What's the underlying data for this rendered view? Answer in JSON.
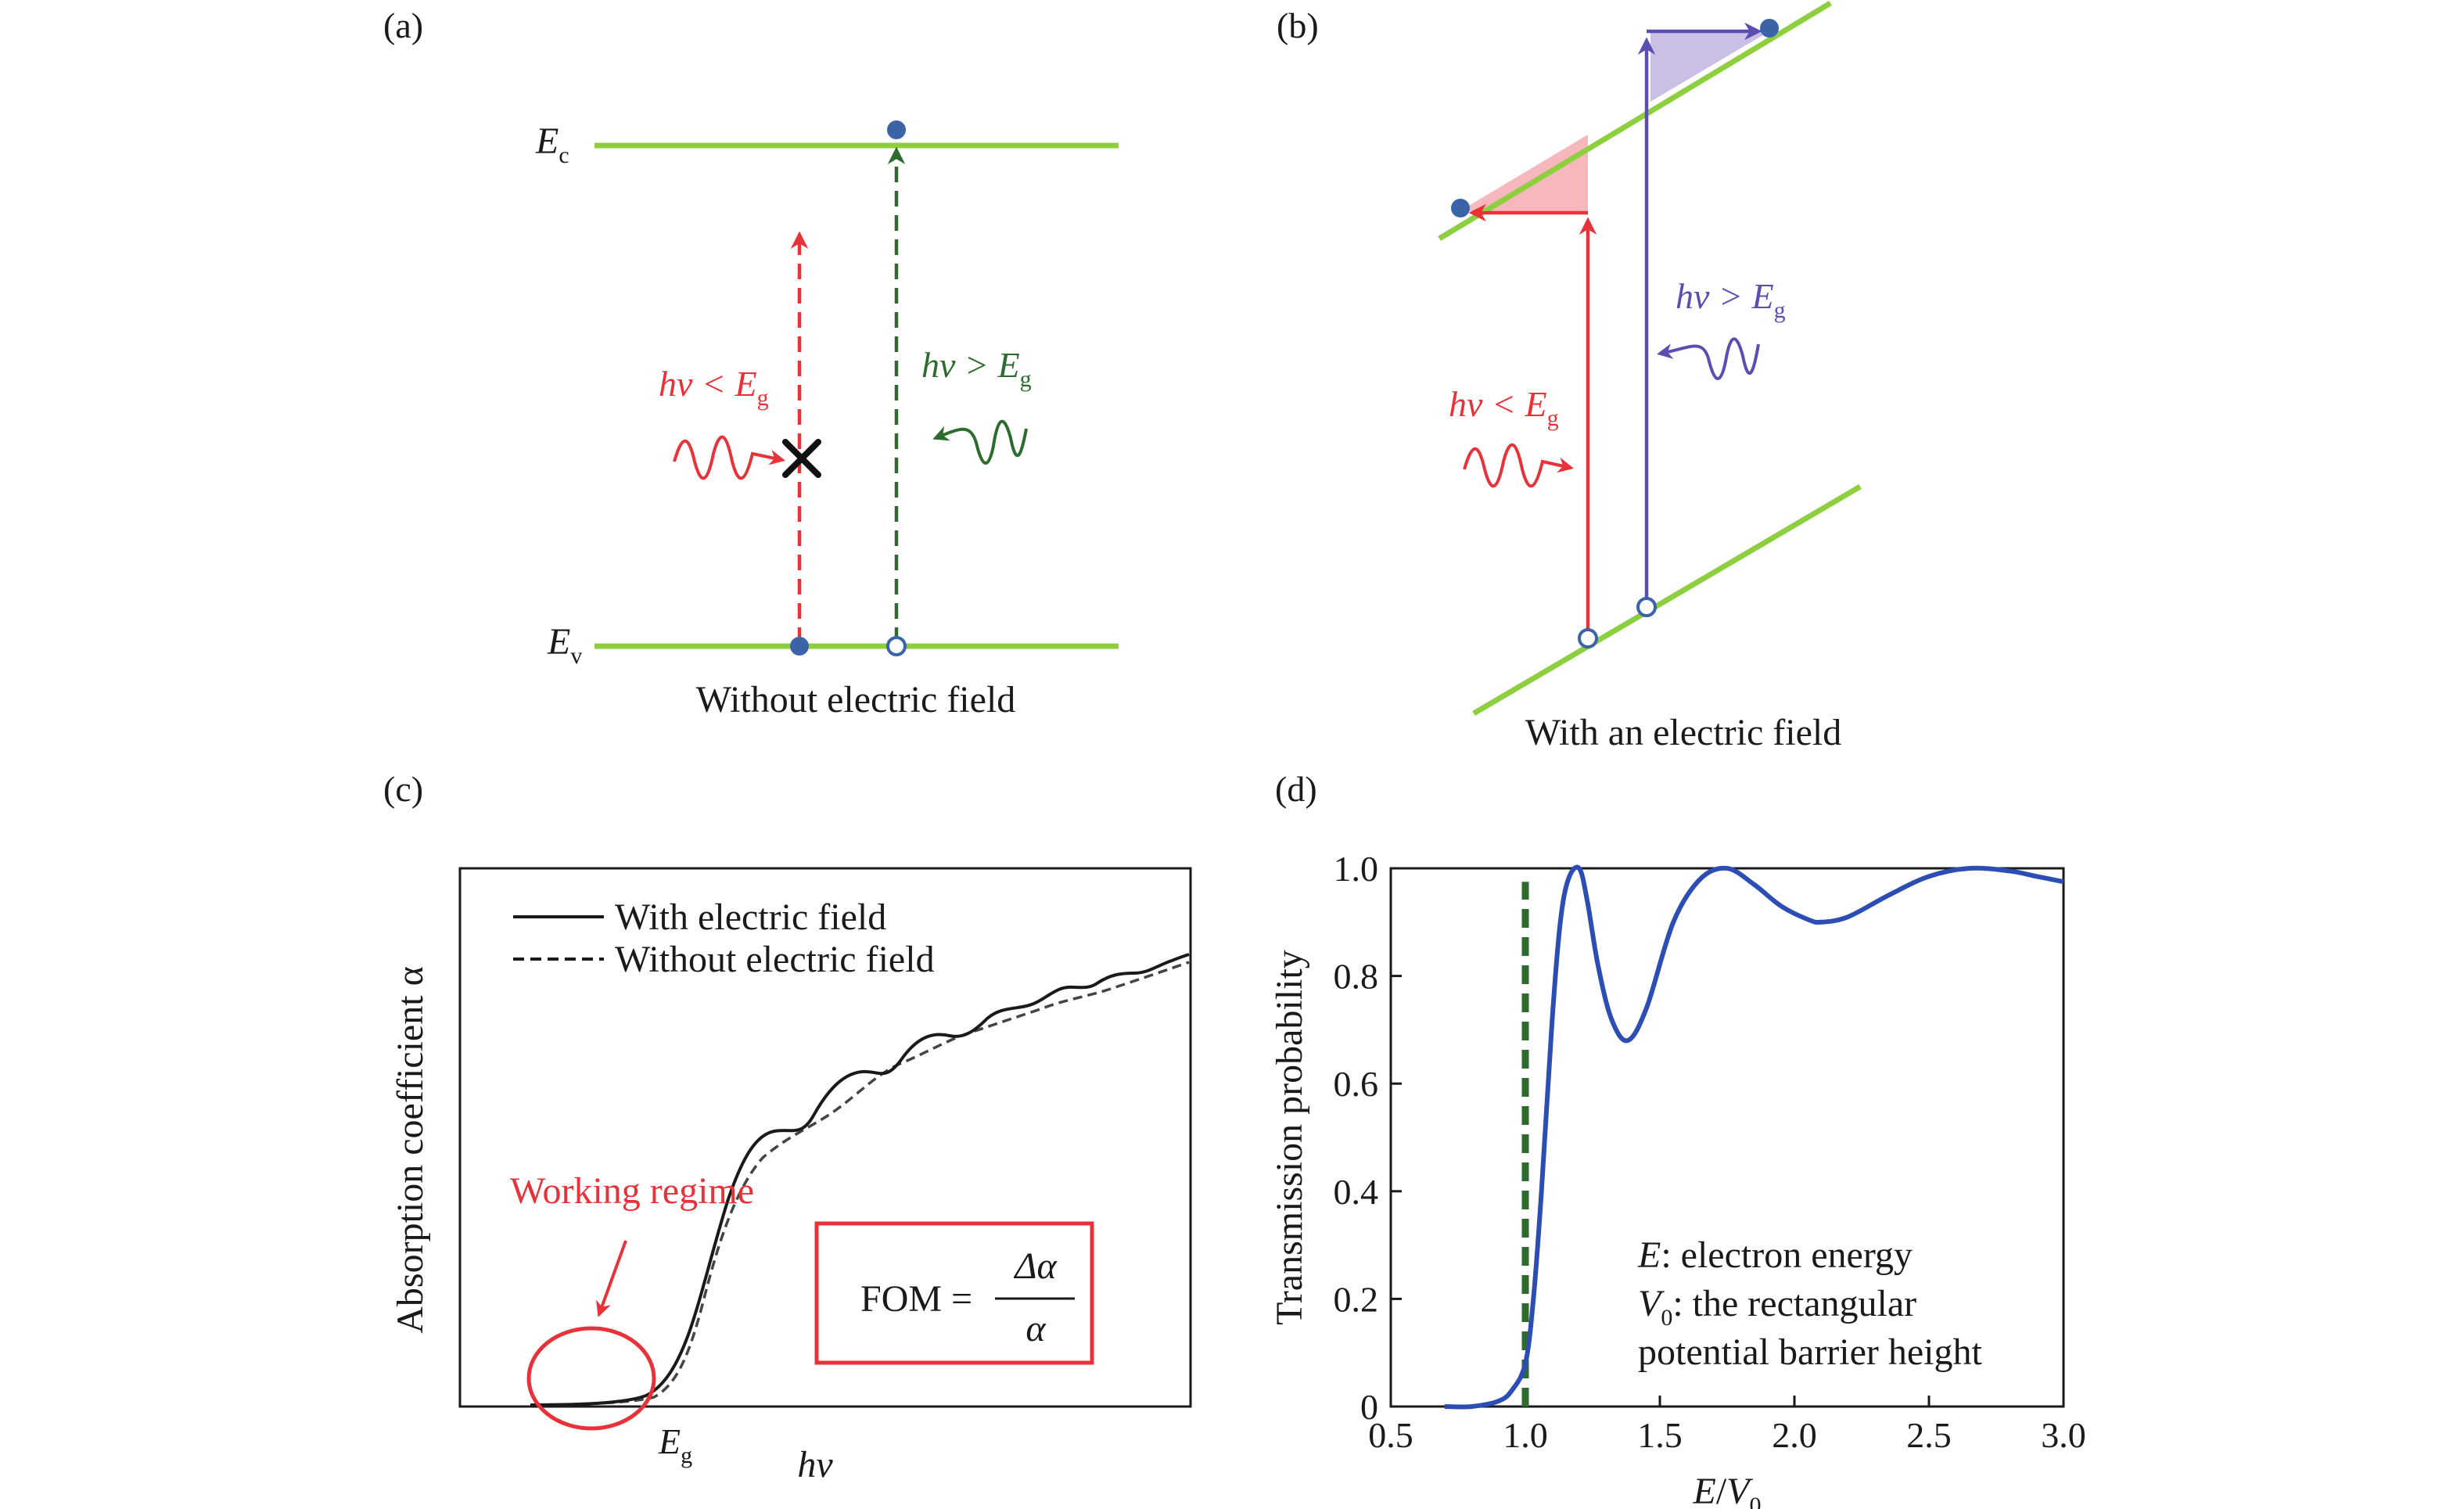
{
  "colors": {
    "band": "#8dcf3f",
    "red": "#e8323a",
    "green": "#2e6b2e",
    "blue": "#5a4fb0",
    "dot": "#3a63a8",
    "curve": "#2c4db3",
    "dash_green": "#2e6b2e",
    "fill_red": "#f6b8bc",
    "fill_blue": "#cbbfe6"
  },
  "panel_a": {
    "label": "(a)",
    "ec": {
      "main": "E",
      "sub": "c"
    },
    "ev": {
      "main": "E",
      "sub": "v"
    },
    "below": {
      "prefix": "hv < E",
      "sub": "g"
    },
    "above": {
      "prefix": "hv > E",
      "sub": "g"
    },
    "caption": "Without electric field",
    "blocked_icon": "cross-icon"
  },
  "panel_b": {
    "label": "(b)",
    "below": {
      "prefix": "hv < E",
      "sub": "g"
    },
    "above": {
      "prefix": "hv > E",
      "sub": "g"
    },
    "caption": "With an electric field"
  },
  "panel_c": {
    "label": "(c)",
    "ylabel": "Absorption coefficient α",
    "xlabel": "hv",
    "eg": {
      "main": "E",
      "sub": "g"
    },
    "legend": [
      "With electric field",
      "Without electric field"
    ],
    "annotation": "Working regime",
    "fom": {
      "prefix": "FOM =",
      "numerator": "Δα",
      "denominator": "α"
    }
  },
  "panel_d": {
    "label": "(d)",
    "notes": [
      {
        "sym": "E",
        "sub": "",
        "text": ": electron energy"
      },
      {
        "sym": "V",
        "sub": "0",
        "text": ": the rectangular"
      },
      {
        "sym": "",
        "sub": "",
        "text": "potential barrier height"
      }
    ]
  },
  "chart_data": {
    "type": "line",
    "title": "",
    "xlabel": "E/V0",
    "ylabel": "Transmission probability",
    "xlim": [
      0.5,
      3.0
    ],
    "ylim": [
      0,
      1.0
    ],
    "xticks": [
      "0.5",
      "1.0",
      "1.5",
      "2.0",
      "2.5",
      "3.0"
    ],
    "yticks": [
      "0",
      "0.2",
      "0.4",
      "0.6",
      "0.8",
      "1.0"
    ],
    "threshold_line_x": 1.0,
    "series": [
      {
        "name": "Transmission probability",
        "x": [
          0.7,
          0.8,
          0.9,
          0.95,
          1.0,
          1.03,
          1.06,
          1.1,
          1.13,
          1.16,
          1.2,
          1.23,
          1.27,
          1.32,
          1.38,
          1.45,
          1.55,
          1.65,
          1.75,
          1.85,
          1.95,
          2.05,
          2.1,
          2.2,
          2.35,
          2.5,
          2.65,
          2.8,
          2.9,
          3.0
        ],
        "y": [
          0.0,
          0.0,
          0.01,
          0.03,
          0.08,
          0.2,
          0.4,
          0.72,
          0.9,
          0.98,
          1.0,
          0.94,
          0.82,
          0.72,
          0.68,
          0.74,
          0.9,
          0.98,
          1.0,
          0.97,
          0.93,
          0.905,
          0.9,
          0.91,
          0.95,
          0.985,
          1.0,
          0.995,
          0.985,
          0.975
        ]
      }
    ]
  }
}
